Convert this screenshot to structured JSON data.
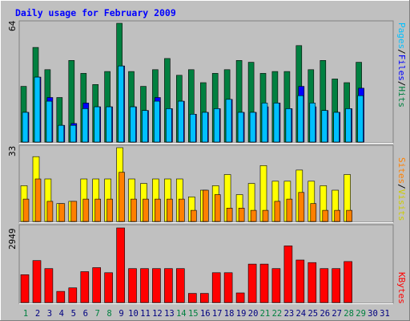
{
  "title": "Daily usage for February 2009",
  "colors": {
    "background": "#c0c0c0",
    "title": "#0000ff",
    "hits": "#008040",
    "files": "#0000ff",
    "pages": "#00c0ff",
    "visits": "#ffff00",
    "sites": "#ff8000",
    "kbytes": "#ff0000",
    "weekend": "#008040",
    "weekday": "#000080"
  },
  "legends": {
    "top": [
      "Pages",
      "/",
      "Files",
      "/",
      "Hits"
    ],
    "middle": [
      "Sites",
      "/",
      "Visits"
    ],
    "bottom": [
      "KBytes"
    ]
  },
  "chart_data": {
    "type": "bar",
    "categories": [
      "1",
      "2",
      "3",
      "4",
      "5",
      "6",
      "7",
      "8",
      "9",
      "10",
      "11",
      "12",
      "13",
      "14",
      "15",
      "16",
      "17",
      "18",
      "19",
      "20",
      "21",
      "22",
      "23",
      "24",
      "25",
      "26",
      "27",
      "28",
      "29",
      "30",
      "31"
    ],
    "weekend_days": [
      1,
      7,
      8,
      14,
      15,
      21,
      22,
      28,
      29
    ],
    "panels": [
      {
        "name": "top",
        "ymax": 64,
        "tick_label": "64",
        "series": [
          {
            "name": "Hits",
            "values": [
              30,
              51,
              39,
              24,
              44,
              37,
              31,
              38,
              64,
              38,
              30,
              39,
              45,
              36,
              39,
              32,
              37,
              39,
              44,
              43,
              37,
              38,
              38,
              52,
              39,
              44,
              34,
              32,
              43,
              0,
              0
            ]
          },
          {
            "name": "Files",
            "values": [
              16,
              35,
              24,
              9,
              10,
              21,
              19,
              19,
              41,
              19,
              17,
              24,
              18,
              22,
              15,
              16,
              18,
              23,
              16,
              16,
              19,
              21,
              18,
              30,
              19,
              17,
              16,
              18,
              29,
              0,
              0
            ]
          },
          {
            "name": "Pages",
            "values": [
              16,
              35,
              22,
              9,
              9,
              18,
              19,
              19,
              41,
              19,
              17,
              22,
              18,
              22,
              15,
              16,
              18,
              23,
              16,
              16,
              21,
              21,
              18,
              25,
              21,
              17,
              16,
              18,
              25,
              0,
              0
            ]
          }
        ]
      },
      {
        "name": "middle",
        "ymax": 33,
        "tick_label": "33",
        "series": [
          {
            "name": "Visits",
            "values": [
              16,
              29,
              19,
              8,
              9,
              19,
              19,
              19,
              33,
              19,
              17,
              19,
              19,
              19,
              11,
              14,
              16,
              21,
              12,
              17,
              25,
              18,
              18,
              23,
              18,
              16,
              14,
              21,
              0,
              0,
              0
            ]
          },
          {
            "name": "Sites",
            "values": [
              10,
              19,
              9,
              8,
              9,
              10,
              10,
              10,
              22,
              10,
              10,
              10,
              10,
              10,
              5,
              14,
              12,
              6,
              6,
              5,
              5,
              9,
              10,
              13,
              8,
              5,
              5,
              5,
              0,
              0,
              0
            ]
          }
        ]
      },
      {
        "name": "bottom",
        "ymax": 2949,
        "tick_label": "2949",
        "series": [
          {
            "name": "KBytes",
            "values": [
              1100,
              1660,
              1340,
              440,
              580,
              1220,
              1380,
              1180,
              2949,
              1340,
              1340,
              1340,
              1340,
              1340,
              360,
              360,
              1180,
              1180,
              380,
              1520,
              1520,
              1340,
              2240,
              1680,
              1580,
              1340,
              1340,
              1620,
              0,
              0,
              0
            ]
          }
        ]
      }
    ]
  }
}
